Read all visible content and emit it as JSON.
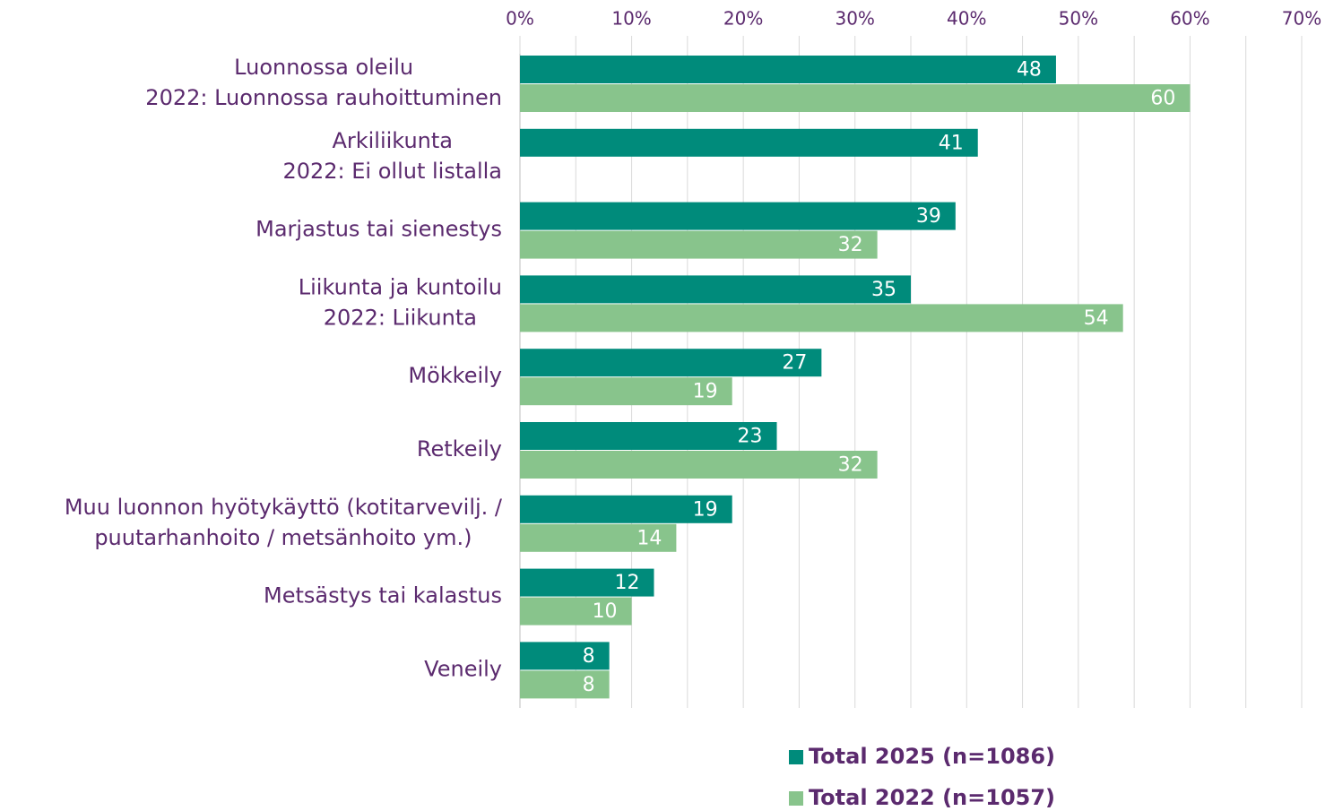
{
  "chart_data": {
    "type": "bar",
    "orientation": "horizontal",
    "categories": [
      [
        "Luonnossa oleilu",
        "2022: Luonnossa rauhoittuminen"
      ],
      [
        "Arkiliikunta",
        "2022: Ei ollut listalla"
      ],
      [
        "Marjastus tai sienestys"
      ],
      [
        "Liikunta ja kuntoilu",
        "2022: Liikunta"
      ],
      [
        "Mökkeily"
      ],
      [
        "Retkeily"
      ],
      [
        "Muu luonnon hyötykäyttö (kotitarvevilj. /",
        "puutarhanhoito / metsänhoito ym.)"
      ],
      [
        "Metsästys tai kalastus"
      ],
      [
        "Veneily"
      ]
    ],
    "series": [
      {
        "name": "Total 2025 (n=1086)",
        "color": "#008b7b",
        "values": [
          48,
          41,
          39,
          35,
          27,
          23,
          19,
          12,
          8
        ]
      },
      {
        "name": "Total 2022 (n=1057)",
        "color": "#88c48c",
        "values": [
          60,
          null,
          32,
          54,
          19,
          32,
          14,
          10,
          8
        ]
      }
    ],
    "xlim": [
      0,
      70
    ],
    "xticks": [
      {
        "value": 0,
        "label": "0%"
      },
      {
        "value": 10,
        "label": "10%"
      },
      {
        "value": 20,
        "label": "20%"
      },
      {
        "value": 30,
        "label": "30%"
      },
      {
        "value": 40,
        "label": "40%"
      },
      {
        "value": 50,
        "label": "50%"
      },
      {
        "value": 60,
        "label": "60%"
      },
      {
        "value": 70,
        "label": "70%"
      }
    ],
    "xminorticks": [
      5,
      15,
      25,
      35,
      45,
      55,
      65
    ],
    "grid": true,
    "legend": "bottom"
  }
}
